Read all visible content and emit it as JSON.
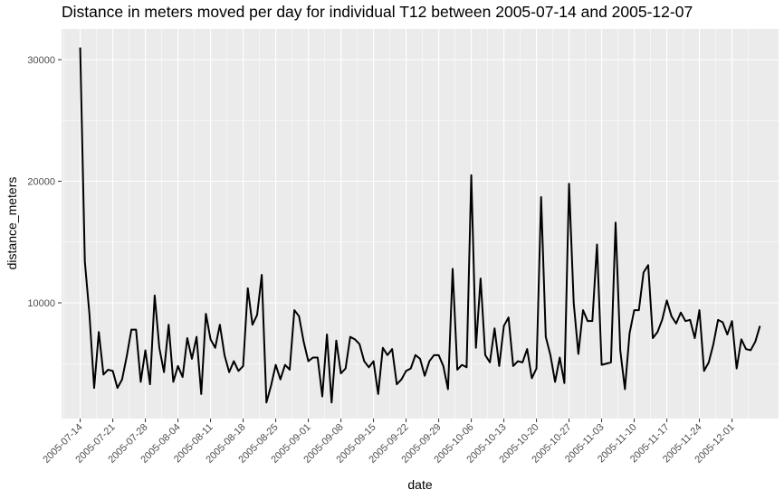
{
  "chart_data": {
    "type": "line",
    "title": "Distance in meters moved per day for individual T12 between 2005-07-14 and 2005-12-07",
    "xlabel": "date",
    "ylabel": "distance_meters",
    "x_start": "2005-07-14",
    "x_end": "2005-12-07",
    "xlim": [
      "2005-07-10",
      "2005-12-11"
    ],
    "ylim": [
      1800,
      31000
    ],
    "x_ticks": [
      "2005-07-14",
      "2005-07-21",
      "2005-07-28",
      "2005-08-04",
      "2005-08-11",
      "2005-08-18",
      "2005-08-25",
      "2005-09-01",
      "2005-09-08",
      "2005-09-15",
      "2005-09-22",
      "2005-09-29",
      "2005-10-06",
      "2005-10-13",
      "2005-10-20",
      "2005-10-27",
      "2005-11-03",
      "2005-11-10",
      "2005-11-17",
      "2005-11-24",
      "2005-12-01"
    ],
    "y_ticks": [
      10000,
      20000,
      30000
    ],
    "y_tick_labels": [
      "10000",
      "20000",
      "30000"
    ],
    "grid": true,
    "legend": "none",
    "colors": {
      "panel": "#ebebeb",
      "grid_major": "#ffffff",
      "line": "#000000"
    },
    "series": [
      {
        "values": [
          31000,
          13400,
          9000,
          3000,
          7600,
          4100,
          4500,
          4400,
          3000,
          3700,
          5600,
          7800,
          7800,
          3500,
          6100,
          3300,
          10600,
          6300,
          4300,
          8200,
          3500,
          4800,
          3900,
          7100,
          5400,
          7200,
          2500,
          9100,
          7000,
          6300,
          8200,
          5700,
          4300,
          5200,
          4400,
          4800,
          11200,
          8200,
          9000,
          12300,
          1800,
          3200,
          4900,
          3700,
          4900,
          4500,
          9400,
          8900,
          6800,
          5200,
          5500,
          5500,
          2300,
          7400,
          1800,
          6900,
          4200,
          4600,
          7200,
          7000,
          6600,
          5200,
          4700,
          5200,
          2500,
          6300,
          5700,
          6200,
          3300,
          3700,
          4400,
          4600,
          5700,
          5400,
          4000,
          5200,
          5700,
          5700,
          4800,
          2900,
          12800,
          4500,
          4900,
          4700,
          20500,
          6300,
          12000,
          5700,
          5100,
          7900,
          4800,
          8100,
          8800,
          4800,
          5200,
          5100,
          6200,
          3800,
          4600,
          18700,
          7200,
          5700,
          3500,
          5500,
          3400,
          19800,
          10000,
          5800,
          9400,
          8500,
          8500,
          14800,
          4900,
          5000,
          5100,
          16600,
          6100,
          2900,
          7500,
          9400,
          9400,
          12500,
          13100,
          7100,
          7600,
          8600,
          10200,
          8900,
          8300,
          9200,
          8500,
          8600,
          7100,
          9400,
          4400,
          5100,
          6600,
          8600,
          8400,
          7400,
          8500,
          4600,
          7000,
          6200,
          6100,
          6800,
          8100
        ]
      }
    ]
  }
}
